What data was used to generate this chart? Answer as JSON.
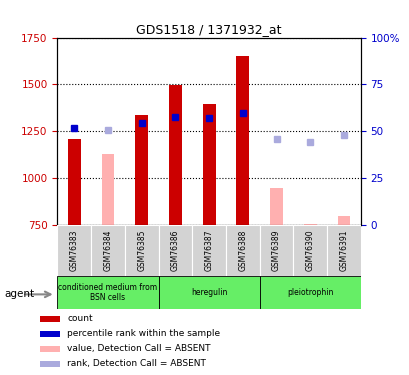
{
  "title": "GDS1518 / 1371932_at",
  "samples": [
    "GSM76383",
    "GSM76384",
    "GSM76385",
    "GSM76386",
    "GSM76387",
    "GSM76388",
    "GSM76389",
    "GSM76390",
    "GSM76391"
  ],
  "ylim_left": [
    750,
    1750
  ],
  "ylim_right": [
    0,
    100
  ],
  "yticks_left": [
    750,
    1000,
    1250,
    1500,
    1750
  ],
  "yticks_right": [
    0,
    25,
    50,
    75,
    100
  ],
  "red_bars": [
    1210,
    null,
    1335,
    1495,
    1395,
    1650,
    null,
    null,
    null
  ],
  "pink_bars": [
    null,
    1130,
    null,
    null,
    null,
    null,
    945,
    755,
    800
  ],
  "blue_squares_y": [
    1265,
    null,
    1295,
    1325,
    1320,
    1350,
    null,
    null,
    null
  ],
  "lavender_squares_y": [
    null,
    1255,
    null,
    null,
    null,
    null,
    1210,
    1195,
    1230
  ],
  "bar_bottom": 750,
  "red_color": "#cc0000",
  "pink_color": "#ffb0b0",
  "blue_color": "#0000cc",
  "lavender_color": "#aaaadd",
  "legend_items": [
    {
      "color": "#cc0000",
      "label": "count"
    },
    {
      "color": "#0000cc",
      "label": "percentile rank within the sample"
    },
    {
      "color": "#ffb0b0",
      "label": "value, Detection Call = ABSENT"
    },
    {
      "color": "#aaaadd",
      "label": "rank, Detection Call = ABSENT"
    }
  ],
  "group_configs": [
    {
      "label": "conditioned medium from\nBSN cells",
      "start": 0,
      "end": 3
    },
    {
      "label": "heregulin",
      "start": 3,
      "end": 6
    },
    {
      "label": "pleiotrophin",
      "start": 6,
      "end": 9
    }
  ]
}
